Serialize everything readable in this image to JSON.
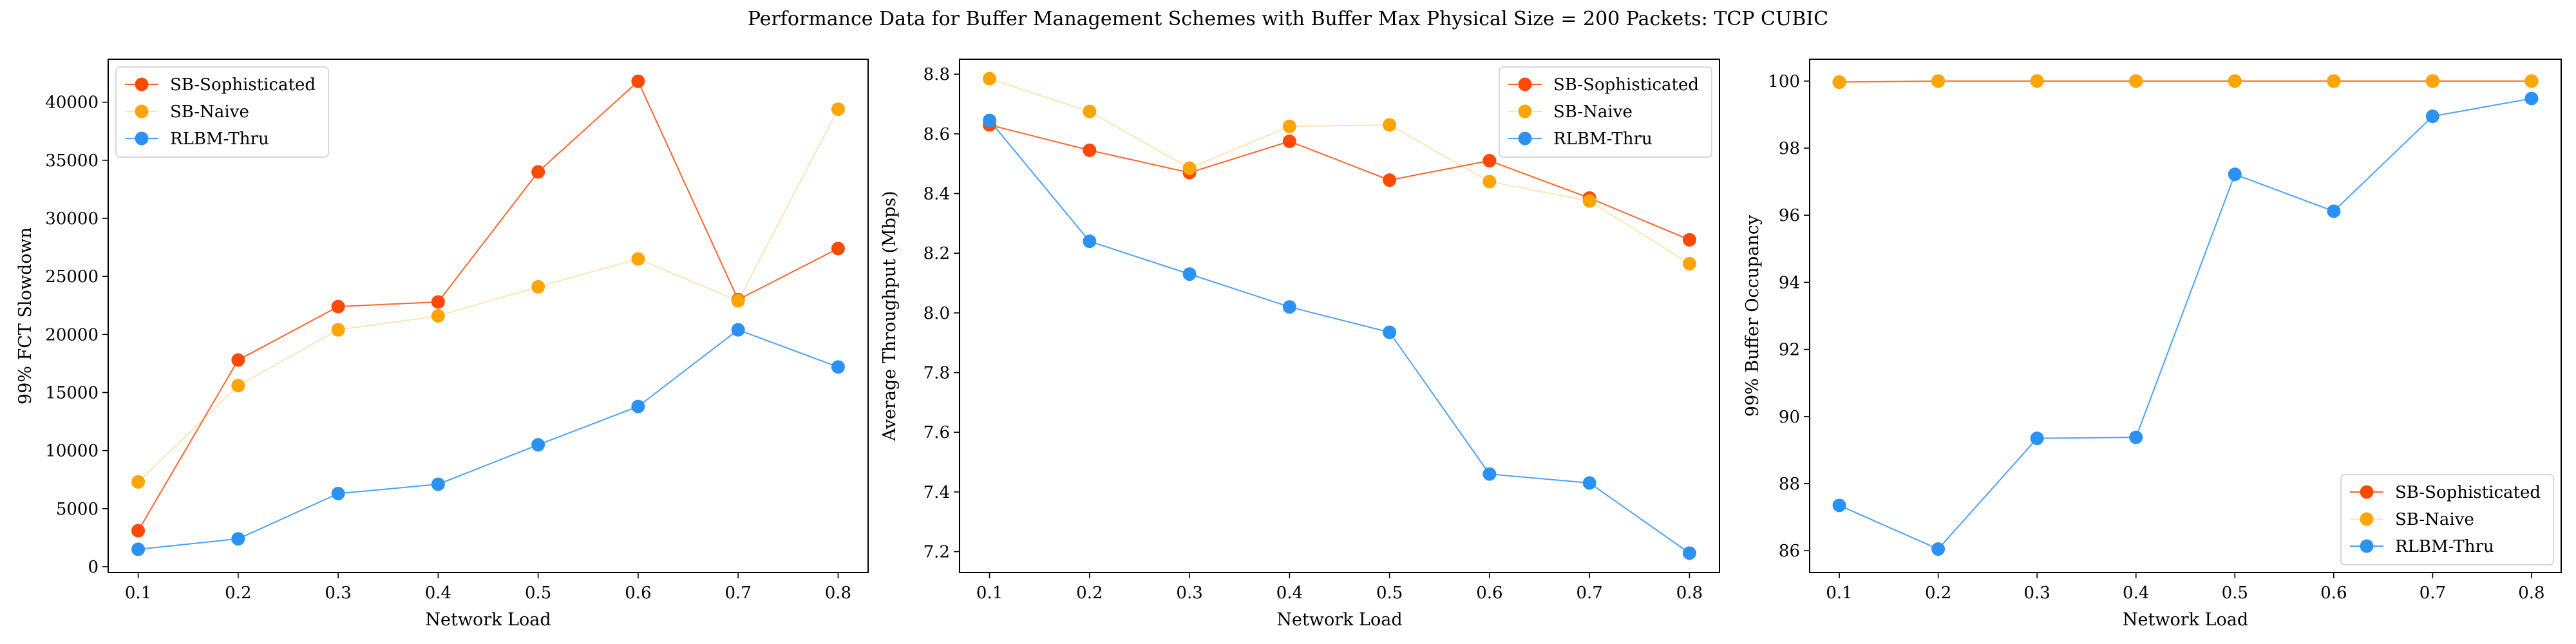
{
  "figure": {
    "title": "Performance Data for Buffer Management Schemes with Buffer Max Physical Size = 200 Packets: TCP CUBIC"
  },
  "series_style": {
    "SB-Sophisticated": {
      "color": "#fc4a05",
      "line_opacity": 0.85
    },
    "SB-Naive": {
      "color": "#ffa500",
      "line_opacity": 0.3
    },
    "RLBM-Thru": {
      "color": "#2b92f3",
      "line_opacity": 0.85
    }
  },
  "chart_data": [
    {
      "type": "line",
      "x": [
        0.1,
        0.2,
        0.3,
        0.4,
        0.5,
        0.6,
        0.7,
        0.8
      ],
      "xlabel": "Network Load",
      "ylabel": "99% FCT Slowdown",
      "xlim": [
        0.07,
        0.83
      ],
      "ylim": [
        -500,
        43700
      ],
      "xticks": [
        "0.1",
        "0.2",
        "0.3",
        "0.4",
        "0.5",
        "0.6",
        "0.7",
        "0.8"
      ],
      "yticks": [
        "0",
        "5000",
        "10000",
        "15000",
        "20000",
        "25000",
        "30000",
        "35000",
        "40000"
      ],
      "legend": "top-left",
      "grid": false,
      "series": [
        {
          "name": "SB-Sophisticated",
          "values": [
            3100,
            17800,
            22400,
            22800,
            34000,
            41800,
            23000,
            27400
          ]
        },
        {
          "name": "SB-Naive",
          "values": [
            7300,
            15600,
            20400,
            21600,
            24100,
            26500,
            22900,
            39400
          ]
        },
        {
          "name": "RLBM-Thru",
          "values": [
            1500,
            2400,
            6300,
            7100,
            10500,
            13800,
            20400,
            17200
          ]
        }
      ]
    },
    {
      "type": "line",
      "x": [
        0.1,
        0.2,
        0.3,
        0.4,
        0.5,
        0.6,
        0.7,
        0.8
      ],
      "xlabel": "Network Load",
      "ylabel": "Average Throughput (Mbps)",
      "xlim": [
        0.07,
        0.83
      ],
      "ylim": [
        7.13,
        8.85
      ],
      "xticks": [
        "0.1",
        "0.2",
        "0.3",
        "0.4",
        "0.5",
        "0.6",
        "0.7",
        "0.8"
      ],
      "yticks": [
        "7.2",
        "7.4",
        "7.6",
        "7.8",
        "8.0",
        "8.2",
        "8.4",
        "8.6",
        "8.8"
      ],
      "legend": "top-right",
      "grid": false,
      "series": [
        {
          "name": "SB-Sophisticated",
          "values": [
            8.63,
            8.545,
            8.47,
            8.575,
            8.445,
            8.51,
            8.385,
            8.245
          ]
        },
        {
          "name": "SB-Naive",
          "values": [
            8.785,
            8.675,
            8.485,
            8.625,
            8.63,
            8.44,
            8.375,
            8.165
          ]
        },
        {
          "name": "RLBM-Thru",
          "values": [
            8.645,
            8.24,
            8.13,
            8.02,
            7.935,
            7.46,
            7.43,
            7.195
          ]
        }
      ]
    },
    {
      "type": "line",
      "x": [
        0.1,
        0.2,
        0.3,
        0.4,
        0.5,
        0.6,
        0.7,
        0.8
      ],
      "xlabel": "Network Load",
      "ylabel": "99% Buffer Occupancy",
      "xlim": [
        0.07,
        0.83
      ],
      "ylim": [
        85.35,
        100.65
      ],
      "xticks": [
        "0.1",
        "0.2",
        "0.3",
        "0.4",
        "0.5",
        "0.6",
        "0.7",
        "0.8"
      ],
      "yticks": [
        "86",
        "88",
        "90",
        "92",
        "94",
        "96",
        "98",
        "100"
      ],
      "legend": "bottom-right",
      "grid": false,
      "series": [
        {
          "name": "SB-Sophisticated",
          "values": [
            99.97,
            100,
            100,
            100,
            100,
            100,
            100,
            100
          ]
        },
        {
          "name": "SB-Naive",
          "values": [
            99.97,
            100,
            100,
            100,
            100,
            100,
            100,
            100
          ]
        },
        {
          "name": "RLBM-Thru",
          "values": [
            87.35,
            86.05,
            89.35,
            89.38,
            97.22,
            96.12,
            98.95,
            99.48
          ]
        }
      ]
    }
  ]
}
